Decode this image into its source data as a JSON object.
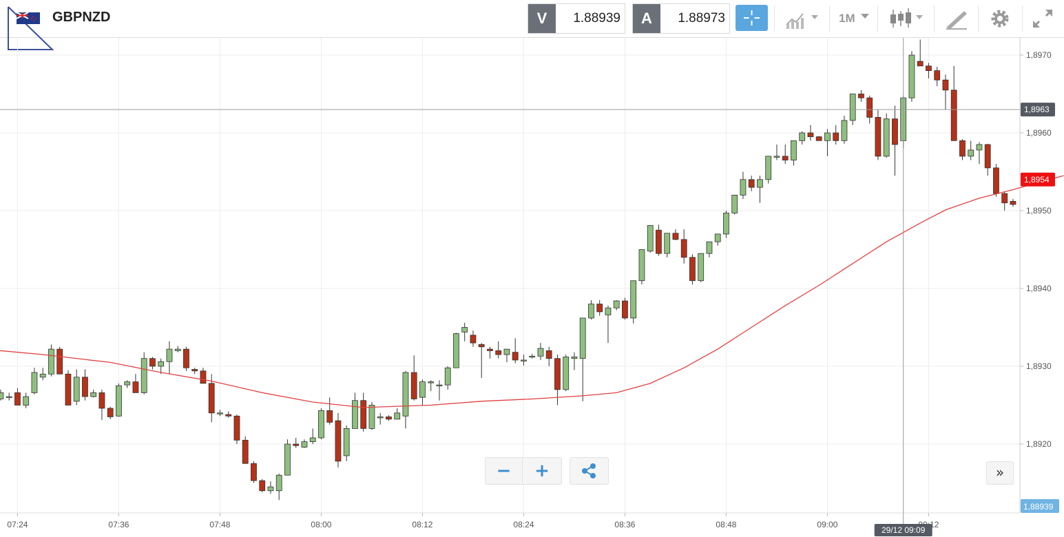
{
  "header": {
    "symbol": "GBPNZD",
    "flag_icon": "gbp-nzd-flag-icon",
    "bid_tag": "V",
    "bid_value": "1.88939",
    "ask_tag": "A",
    "ask_value": "1.88973",
    "timeframe_label": "1M",
    "tools": [
      "crosshair-icon",
      "chart-type-icon",
      "timeframe-dropdown",
      "candlestick-icon",
      "drawing-icon",
      "gear-icon",
      "fullscreen-icon"
    ]
  },
  "crosshair": {
    "price_label": "1,8963",
    "time_label": "29/12 09:09",
    "price_value": 1.8963,
    "time_value": "09:09"
  },
  "badges": {
    "ma_value_label": "1,8954",
    "ma_value": 1.8954,
    "bid_label": "1,88939",
    "bid_value": 1.88939
  },
  "controls": {
    "zoom_out_label": "−",
    "zoom_in_label": "+",
    "share_icon": "share-icon",
    "scroll_label": "»"
  },
  "colors": {
    "up": "#8fbf7f",
    "down": "#b53218",
    "ma_line": "#e04040",
    "ma_badge": "#ee1111",
    "bid_badge": "#6fb4e3",
    "crosshair_badge": "#555a62",
    "accent": "#5aa7e0"
  },
  "chart_data": {
    "type": "candlestick",
    "symbol": "GBPNZD",
    "interval": "1 minute",
    "y_ticks": [
      "1,8920",
      "1,8930",
      "1,8940",
      "1,8950",
      "1,8960",
      "1,8970"
    ],
    "y_tick_values": [
      1.892,
      1.893,
      1.894,
      1.895,
      1.896,
      1.897
    ],
    "ylim": [
      1.89115,
      1.89715
    ],
    "x_ticks": [
      "07:24",
      "07:36",
      "07:48",
      "08:00",
      "08:12",
      "08:24",
      "08:36",
      "08:48",
      "09:00",
      "09:12"
    ],
    "x_tick_minutes": [
      444,
      456,
      468,
      480,
      492,
      504,
      516,
      528,
      540,
      552
    ],
    "start_time": "07:21",
    "candles_ohlc": [
      [
        1.89255,
        1.89266,
        1.89246,
        1.89246
      ],
      [
        1.89258,
        1.8927,
        1.89256,
        1.89266
      ],
      [
        1.89261,
        1.89266,
        1.89256,
        1.89261
      ],
      [
        1.89266,
        1.89272,
        1.8925,
        1.8925
      ],
      [
        1.8925,
        1.89266,
        1.89246,
        1.89261
      ],
      [
        1.89266,
        1.89298,
        1.89264,
        1.89292
      ],
      [
        1.89286,
        1.89298,
        1.89282,
        1.8929
      ],
      [
        1.8929,
        1.89328,
        1.89287,
        1.89322
      ],
      [
        1.89322,
        1.89325,
        1.8929,
        1.8929
      ],
      [
        1.8929,
        1.89295,
        1.8925,
        1.8925
      ],
      [
        1.89255,
        1.89296,
        1.8925,
        1.89286
      ],
      [
        1.89286,
        1.89296,
        1.89256,
        1.89261
      ],
      [
        1.89261,
        1.8927,
        1.8926,
        1.89266
      ],
      [
        1.89266,
        1.8927,
        1.89231,
        1.89246
      ],
      [
        1.89246,
        1.89248,
        1.89232,
        1.89235
      ],
      [
        1.89236,
        1.89278,
        1.89235,
        1.89275
      ],
      [
        1.89276,
        1.89282,
        1.89272,
        1.8928
      ],
      [
        1.8928,
        1.8929,
        1.89266,
        1.89266
      ],
      [
        1.89266,
        1.89318,
        1.89264,
        1.8931
      ],
      [
        1.8931,
        1.89312,
        1.89296,
        1.893
      ],
      [
        1.893,
        1.8931,
        1.8929,
        1.89306
      ],
      [
        1.89306,
        1.89332,
        1.8929,
        1.89322
      ],
      [
        1.8932,
        1.89326,
        1.89318,
        1.89322
      ],
      [
        1.89322,
        1.89325,
        1.89294,
        1.89298
      ],
      [
        1.89296,
        1.89298,
        1.8929,
        1.89294
      ],
      [
        1.89294,
        1.89298,
        1.89278,
        1.89278
      ],
      [
        1.89278,
        1.8929,
        1.89228,
        1.8924
      ],
      [
        1.8924,
        1.89244,
        1.89236,
        1.8924
      ],
      [
        1.89238,
        1.89242,
        1.89234,
        1.89236
      ],
      [
        1.89236,
        1.89238,
        1.892,
        1.89205
      ],
      [
        1.89205,
        1.8921,
        1.89175,
        1.89175
      ],
      [
        1.89175,
        1.89178,
        1.8915,
        1.89153
      ],
      [
        1.89153,
        1.89155,
        1.89138,
        1.8914
      ],
      [
        1.8914,
        1.89152,
        1.89136,
        1.89145
      ],
      [
        1.8914,
        1.89162,
        1.89128,
        1.8916
      ],
      [
        1.8916,
        1.89206,
        1.8916,
        1.892
      ],
      [
        1.892,
        1.89208,
        1.89195,
        1.89198
      ],
      [
        1.89196,
        1.89206,
        1.89195,
        1.89203
      ],
      [
        1.89203,
        1.8922,
        1.892,
        1.89208
      ],
      [
        1.89208,
        1.89246,
        1.89206,
        1.89243
      ],
      [
        1.89243,
        1.8926,
        1.89225,
        1.89228
      ],
      [
        1.8923,
        1.8924,
        1.8917,
        1.89178
      ],
      [
        1.89185,
        1.89224,
        1.89178,
        1.8922
      ],
      [
        1.8922,
        1.89266,
        1.8922,
        1.89256
      ],
      [
        1.89256,
        1.89266,
        1.89216,
        1.8922
      ],
      [
        1.8922,
        1.89254,
        1.89218,
        1.8925
      ],
      [
        1.89235,
        1.8924,
        1.89225,
        1.89235
      ],
      [
        1.89235,
        1.89237,
        1.8923,
        1.89232
      ],
      [
        1.89232,
        1.89246,
        1.89232,
        1.8924
      ],
      [
        1.89236,
        1.89294,
        1.8922,
        1.89292
      ],
      [
        1.89292,
        1.89314,
        1.89256,
        1.89258
      ],
      [
        1.8926,
        1.89283,
        1.8925,
        1.8928
      ],
      [
        1.8928,
        1.89282,
        1.89268,
        1.8928
      ],
      [
        1.89276,
        1.89282,
        1.89256,
        1.89276
      ],
      [
        1.89276,
        1.893,
        1.8927,
        1.89298
      ],
      [
        1.89298,
        1.89343,
        1.89298,
        1.89342
      ],
      [
        1.89344,
        1.89356,
        1.89332,
        1.8935
      ],
      [
        1.8934,
        1.89346,
        1.89325,
        1.8933
      ],
      [
        1.89328,
        1.8933,
        1.89285,
        1.89325
      ],
      [
        1.89322,
        1.89325,
        1.8931,
        1.8932
      ],
      [
        1.8932,
        1.89332,
        1.8931,
        1.89315
      ],
      [
        1.89315,
        1.89318,
        1.89305,
        1.89322
      ],
      [
        1.89318,
        1.89336,
        1.89304,
        1.89308
      ],
      [
        1.89308,
        1.89315,
        1.89301,
        1.89308
      ],
      [
        1.89312,
        1.89316,
        1.8931,
        1.89313
      ],
      [
        1.89313,
        1.8933,
        1.89308,
        1.89323
      ],
      [
        1.8932,
        1.89325,
        1.893,
        1.8931
      ],
      [
        1.8931,
        1.89315,
        1.8925,
        1.8927
      ],
      [
        1.8927,
        1.89315,
        1.89268,
        1.89312
      ],
      [
        1.8931,
        1.89318,
        1.89295,
        1.89312
      ],
      [
        1.8931,
        1.89362,
        1.89255,
        1.89362
      ],
      [
        1.89362,
        1.89385,
        1.8936,
        1.8938
      ],
      [
        1.8938,
        1.89385,
        1.89365,
        1.8937
      ],
      [
        1.89366,
        1.89378,
        1.8933,
        1.89375
      ],
      [
        1.89375,
        1.89385,
        1.89372,
        1.89384
      ],
      [
        1.89384,
        1.89388,
        1.8936,
        1.89362
      ],
      [
        1.89362,
        1.8941,
        1.89355,
        1.8941
      ],
      [
        1.8941,
        1.8945,
        1.89405,
        1.8945
      ],
      [
        1.89448,
        1.89481,
        1.89446,
        1.89481
      ],
      [
        1.89475,
        1.89482,
        1.89442,
        1.89445
      ],
      [
        1.89445,
        1.8945,
        1.8944,
        1.89471
      ],
      [
        1.89471,
        1.89476,
        1.89462,
        1.89463
      ],
      [
        1.89463,
        1.89476,
        1.89432,
        1.8944
      ],
      [
        1.8944,
        1.89444,
        1.89405,
        1.8941
      ],
      [
        1.8941,
        1.89445,
        1.89408,
        1.89445
      ],
      [
        1.89445,
        1.8946,
        1.8944,
        1.8946
      ],
      [
        1.8946,
        1.8947,
        1.89455,
        1.8947
      ],
      [
        1.8947,
        1.895,
        1.89465,
        1.89497
      ],
      [
        1.89497,
        1.8952,
        1.89495,
        1.8952
      ],
      [
        1.8952,
        1.8955,
        1.89515,
        1.8954
      ],
      [
        1.8954,
        1.89545,
        1.89525,
        1.8953
      ],
      [
        1.8953,
        1.89545,
        1.8951,
        1.8954
      ],
      [
        1.8954,
        1.8957,
        1.89535,
        1.8957
      ],
      [
        1.8957,
        1.89585,
        1.89565,
        1.8957
      ],
      [
        1.8957,
        1.89585,
        1.8956,
        1.89565
      ],
      [
        1.89565,
        1.8959,
        1.89558,
        1.8959
      ],
      [
        1.8959,
        1.89602,
        1.89585,
        1.896
      ],
      [
        1.896,
        1.8961,
        1.8959,
        1.89595
      ],
      [
        1.89595,
        1.89596,
        1.8959,
        1.8959
      ],
      [
        1.8959,
        1.89605,
        1.8957,
        1.896
      ],
      [
        1.896,
        1.8961,
        1.89585,
        1.8959
      ],
      [
        1.8959,
        1.89622,
        1.89586,
        1.89616
      ],
      [
        1.89616,
        1.8965,
        1.8961,
        1.8965
      ],
      [
        1.8965,
        1.89655,
        1.8964,
        1.89645
      ],
      [
        1.89645,
        1.89648,
        1.89612,
        1.8962
      ],
      [
        1.8962,
        1.8963,
        1.89565,
        1.8957
      ],
      [
        1.8957,
        1.89625,
        1.89568,
        1.89618
      ],
      [
        1.89618,
        1.89635,
        1.89545,
        1.89585
      ],
      [
        1.8959,
        1.89648,
        1.8958,
        1.89645
      ],
      [
        1.89645,
        1.89705,
        1.8964,
        1.897
      ],
      [
        1.89692,
        1.8972,
        1.89688,
        1.89686
      ],
      [
        1.89686,
        1.8969,
        1.8967,
        1.8968
      ],
      [
        1.8968,
        1.89685,
        1.8966,
        1.89668
      ],
      [
        1.89668,
        1.89675,
        1.8963,
        1.89655
      ],
      [
        1.89655,
        1.89686,
        1.8959,
        1.8959
      ],
      [
        1.8959,
        1.89592,
        1.89565,
        1.8957
      ],
      [
        1.8957,
        1.8959,
        1.89565,
        1.89578
      ],
      [
        1.89578,
        1.89588,
        1.8956,
        1.89585
      ],
      [
        1.89585,
        1.89586,
        1.89545,
        1.89555
      ],
      [
        1.89555,
        1.8956,
        1.89518,
        1.89522
      ],
      [
        1.89522,
        1.89524,
        1.895,
        1.8951
      ],
      [
        1.89512,
        1.89515,
        1.89505,
        1.89508
      ],
      [
        1.89508,
        1.89518,
        1.89495,
        1.89508
      ],
      [
        1.89508,
        1.8951,
        1.89482,
        1.89492
      ],
      [
        1.89492,
        1.89494,
        1.8948,
        1.89485
      ],
      [
        1.89485,
        1.8949,
        1.89452,
        1.89466
      ],
      [
        1.8947,
        1.8949,
        1.89465,
        1.8948
      ],
      [
        1.8948,
        1.89512,
        1.8946,
        1.89508
      ],
      [
        1.89508,
        1.89542,
        1.89508,
        1.89536
      ]
    ],
    "moving_average": [
      [
        0,
        1.89321
      ],
      [
        6,
        1.89315
      ],
      [
        14,
        1.89305
      ],
      [
        20,
        1.89292
      ],
      [
        26,
        1.89281
      ],
      [
        32,
        1.89266
      ],
      [
        38,
        1.89254
      ],
      [
        44,
        1.89247
      ],
      [
        52,
        1.8925
      ],
      [
        58,
        1.89255
      ],
      [
        64,
        1.89258
      ],
      [
        70,
        1.89262
      ],
      [
        74,
        1.89266
      ],
      [
        78,
        1.89278
      ],
      [
        82,
        1.89298
      ],
      [
        86,
        1.89322
      ],
      [
        90,
        1.8935
      ],
      [
        94,
        1.89378
      ],
      [
        98,
        1.89404
      ],
      [
        102,
        1.89432
      ],
      [
        106,
        1.8946
      ],
      [
        110,
        1.89484
      ],
      [
        113,
        1.89501
      ],
      [
        117,
        1.89516
      ],
      [
        121,
        1.89527
      ],
      [
        127,
        1.89545
      ]
    ]
  }
}
